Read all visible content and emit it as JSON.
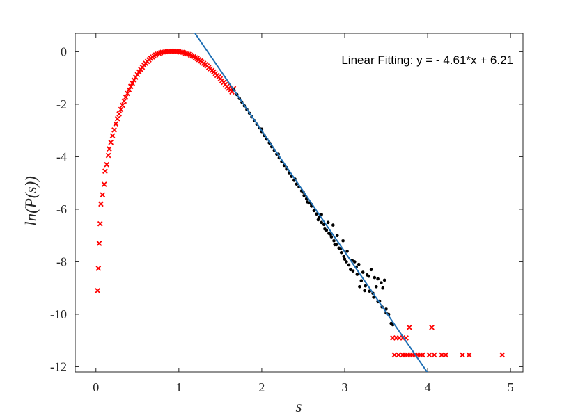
{
  "chart_data": {
    "type": "scatter",
    "xlabel": "s",
    "ylabel": "ln(P(s))",
    "xlim": [
      -0.25,
      5.15
    ],
    "ylim": [
      -12.2,
      0.7
    ],
    "xticks": [
      0,
      1,
      2,
      3,
      4,
      5
    ],
    "yticks": [
      -12,
      -10,
      -8,
      -6,
      -4,
      -2,
      0
    ],
    "xtick_labels": [
      "0",
      "1",
      "2",
      "3",
      "4",
      "5"
    ],
    "ytick_labels": [
      "-12",
      "-10",
      "-8",
      "-6",
      "-4",
      "-2",
      "0"
    ],
    "grid": false,
    "annotation": "Linear Fitting:  y = - 4.61*x + 6.21",
    "fit_line": {
      "slope": -4.61,
      "intercept": 6.21,
      "color": "#1f6fb4"
    },
    "series": [
      {
        "marker": "x",
        "color": "#ff0000",
        "points": [
          [
            0.02,
            -9.1
          ],
          [
            0.03,
            -8.25
          ],
          [
            0.04,
            -7.3
          ],
          [
            0.05,
            -6.55
          ],
          [
            0.06,
            -5.8
          ],
          [
            0.08,
            -5.45
          ],
          [
            0.1,
            -5.05
          ],
          [
            0.11,
            -4.55
          ],
          [
            0.13,
            -4.3
          ],
          [
            0.15,
            -3.95
          ],
          [
            0.16,
            -3.7
          ],
          [
            0.18,
            -3.45
          ],
          [
            0.2,
            -3.2
          ],
          [
            0.22,
            -2.98
          ],
          [
            0.24,
            -2.75
          ],
          [
            0.26,
            -2.55
          ],
          [
            0.28,
            -2.37
          ],
          [
            0.3,
            -2.2
          ],
          [
            0.32,
            -2.04
          ],
          [
            0.34,
            -1.88
          ],
          [
            0.36,
            -1.73
          ],
          [
            0.38,
            -1.59
          ],
          [
            0.4,
            -1.45
          ],
          [
            0.42,
            -1.32
          ],
          [
            0.44,
            -1.2
          ],
          [
            0.46,
            -1.08
          ],
          [
            0.48,
            -0.97
          ],
          [
            0.5,
            -0.87
          ],
          [
            0.52,
            -0.77
          ],
          [
            0.54,
            -0.68
          ],
          [
            0.56,
            -0.59
          ],
          [
            0.58,
            -0.51
          ],
          [
            0.6,
            -0.44
          ],
          [
            0.62,
            -0.37
          ],
          [
            0.64,
            -0.31
          ],
          [
            0.66,
            -0.25
          ],
          [
            0.68,
            -0.2
          ],
          [
            0.7,
            -0.16
          ],
          [
            0.72,
            -0.12
          ],
          [
            0.74,
            -0.09
          ],
          [
            0.76,
            -0.06
          ],
          [
            0.78,
            -0.04
          ],
          [
            0.8,
            -0.02
          ],
          [
            0.82,
            -0.01
          ],
          [
            0.84,
            0.0
          ],
          [
            0.86,
            0.01
          ],
          [
            0.88,
            0.01
          ],
          [
            0.9,
            0.02
          ],
          [
            0.92,
            0.02
          ],
          [
            0.94,
            0.02
          ],
          [
            0.96,
            0.01
          ],
          [
            0.98,
            0.01
          ],
          [
            1.0,
            0.0
          ],
          [
            1.02,
            -0.01
          ],
          [
            1.04,
            -0.02
          ],
          [
            1.06,
            -0.04
          ],
          [
            1.08,
            -0.06
          ],
          [
            1.1,
            -0.08
          ],
          [
            1.12,
            -0.1
          ],
          [
            1.14,
            -0.13
          ],
          [
            1.16,
            -0.16
          ],
          [
            1.18,
            -0.19
          ],
          [
            1.2,
            -0.23
          ],
          [
            1.22,
            -0.26
          ],
          [
            1.24,
            -0.3
          ],
          [
            1.26,
            -0.35
          ],
          [
            1.28,
            -0.39
          ],
          [
            1.3,
            -0.44
          ],
          [
            1.32,
            -0.49
          ],
          [
            1.34,
            -0.54
          ],
          [
            1.36,
            -0.6
          ],
          [
            1.38,
            -0.65
          ],
          [
            1.4,
            -0.71
          ],
          [
            1.42,
            -0.77
          ],
          [
            1.44,
            -0.83
          ],
          [
            1.46,
            -0.9
          ],
          [
            1.48,
            -0.96
          ],
          [
            1.5,
            -1.03
          ],
          [
            1.52,
            -1.1
          ],
          [
            1.54,
            -1.17
          ],
          [
            1.56,
            -1.25
          ],
          [
            1.58,
            -1.32
          ],
          [
            1.6,
            -1.39
          ],
          [
            1.62,
            -1.46
          ],
          [
            1.64,
            -1.53
          ],
          [
            1.66,
            -1.4
          ],
          [
            3.58,
            -10.9
          ],
          [
            3.62,
            -10.9
          ],
          [
            3.66,
            -10.9
          ],
          [
            3.7,
            -10.9
          ],
          [
            3.74,
            -10.9
          ],
          [
            3.78,
            -10.5
          ],
          [
            3.6,
            -11.55
          ],
          [
            3.65,
            -11.55
          ],
          [
            3.7,
            -11.55
          ],
          [
            3.73,
            -11.55
          ],
          [
            3.76,
            -11.55
          ],
          [
            3.79,
            -11.55
          ],
          [
            3.82,
            -11.55
          ],
          [
            3.85,
            -11.55
          ],
          [
            3.88,
            -11.55
          ],
          [
            3.91,
            -11.55
          ],
          [
            3.94,
            -11.55
          ],
          [
            4.05,
            -10.5
          ],
          [
            4.02,
            -11.55
          ],
          [
            4.08,
            -11.55
          ],
          [
            4.17,
            -11.55
          ],
          [
            4.22,
            -11.55
          ],
          [
            4.42,
            -11.55
          ],
          [
            4.5,
            -11.55
          ],
          [
            4.9,
            -11.55
          ]
        ]
      },
      {
        "marker": "dot",
        "color": "#000000",
        "points": [
          [
            1.66,
            -1.45
          ],
          [
            1.7,
            -1.63
          ],
          [
            1.73,
            -1.78
          ],
          [
            1.76,
            -1.92
          ],
          [
            1.79,
            -2.06
          ],
          [
            1.82,
            -2.2
          ],
          [
            1.85,
            -2.34
          ],
          [
            1.88,
            -2.48
          ],
          [
            1.91,
            -2.62
          ],
          [
            1.94,
            -2.76
          ],
          [
            1.97,
            -2.9
          ],
          [
            2.0,
            -3.04
          ],
          [
            2.03,
            -3.19
          ],
          [
            2.06,
            -3.33
          ],
          [
            2.09,
            -3.47
          ],
          [
            2.12,
            -3.62
          ],
          [
            2.15,
            -3.75
          ],
          [
            2.18,
            -3.9
          ],
          [
            2.21,
            -4.04
          ],
          [
            2.24,
            -4.18
          ],
          [
            2.27,
            -4.33
          ],
          [
            2.3,
            -4.47
          ],
          [
            2.33,
            -4.61
          ],
          [
            2.36,
            -4.75
          ],
          [
            2.39,
            -4.9
          ],
          [
            2.42,
            -5.04
          ],
          [
            2.45,
            -5.15
          ],
          [
            2.48,
            -5.3
          ],
          [
            2.51,
            -5.48
          ],
          [
            2.54,
            -5.6
          ],
          [
            2.57,
            -5.76
          ],
          [
            2.6,
            -5.88
          ],
          [
            2.63,
            -6.05
          ],
          [
            2.66,
            -6.18
          ],
          [
            2.69,
            -6.32
          ],
          [
            2.72,
            -6.5
          ],
          [
            2.75,
            -6.58
          ],
          [
            2.78,
            -6.8
          ],
          [
            2.81,
            -6.92
          ],
          [
            2.84,
            -7.05
          ],
          [
            2.87,
            -7.2
          ],
          [
            2.9,
            -7.35
          ],
          [
            2.93,
            -7.48
          ],
          [
            2.96,
            -7.65
          ],
          [
            2.99,
            -7.8
          ],
          [
            3.02,
            -8.0
          ],
          [
            3.05,
            -8.12
          ],
          [
            3.1,
            -8.35
          ],
          [
            3.15,
            -8.48
          ],
          [
            3.2,
            -8.72
          ],
          [
            3.25,
            -8.92
          ],
          [
            3.3,
            -9.12
          ],
          [
            3.35,
            -9.35
          ],
          [
            3.4,
            -9.52
          ],
          [
            3.45,
            -9.72
          ],
          [
            3.5,
            -9.95
          ],
          [
            3.56,
            -10.35
          ],
          [
            2.0,
            -2.95
          ],
          [
            2.1,
            -3.5
          ],
          [
            2.2,
            -3.9
          ],
          [
            2.3,
            -4.42
          ],
          [
            2.4,
            -4.85
          ],
          [
            2.5,
            -5.35
          ],
          [
            2.55,
            -5.72
          ],
          [
            2.6,
            -5.82
          ],
          [
            2.68,
            -6.4
          ],
          [
            2.72,
            -6.2
          ],
          [
            2.76,
            -6.75
          ],
          [
            2.8,
            -6.5
          ],
          [
            2.83,
            -6.95
          ],
          [
            2.86,
            -6.6
          ],
          [
            2.88,
            -7.35
          ],
          [
            2.91,
            -7.0
          ],
          [
            2.95,
            -7.5
          ],
          [
            2.98,
            -7.2
          ],
          [
            3.0,
            -7.9
          ],
          [
            3.03,
            -7.6
          ],
          [
            3.07,
            -8.3
          ],
          [
            3.09,
            -7.95
          ],
          [
            3.12,
            -8.0
          ],
          [
            3.14,
            -8.2
          ],
          [
            3.17,
            -8.1
          ],
          [
            3.18,
            -8.95
          ],
          [
            3.22,
            -8.4
          ],
          [
            3.24,
            -9.1
          ],
          [
            3.27,
            -8.5
          ],
          [
            3.29,
            -8.55
          ],
          [
            3.32,
            -8.3
          ],
          [
            3.34,
            -9.2
          ],
          [
            3.36,
            -8.6
          ],
          [
            3.38,
            -8.95
          ],
          [
            3.4,
            -8.65
          ],
          [
            3.42,
            -9.5
          ],
          [
            3.44,
            -8.8
          ],
          [
            3.46,
            -9.0
          ],
          [
            3.48,
            -8.7
          ],
          [
            3.5,
            -9.8
          ],
          [
            3.53,
            -10.0
          ],
          [
            3.58,
            -10.4
          ]
        ]
      }
    ]
  }
}
